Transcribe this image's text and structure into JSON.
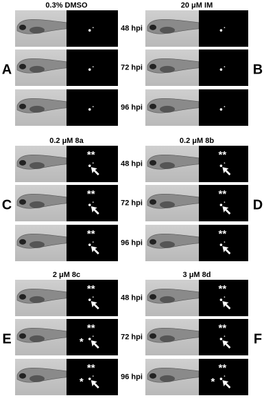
{
  "groups": [
    {
      "panels": [
        {
          "title": "0.3% DMSO",
          "letter": "A",
          "rows": [
            {
              "marks": []
            },
            {
              "marks": []
            },
            {
              "marks": []
            }
          ]
        },
        {
          "title": "20 μM IM",
          "letter": "B",
          "rows": [
            {
              "marks": []
            },
            {
              "marks": []
            },
            {
              "marks": []
            }
          ]
        }
      ],
      "times": [
        "48 hpi",
        "72 hpi",
        "96 hpi"
      ]
    },
    {
      "panels": [
        {
          "title": "0.2 μM 8a",
          "letter": "C",
          "rows": [
            {
              "marks": [
                "**"
              ]
            },
            {
              "marks": [
                "**"
              ]
            },
            {
              "marks": [
                "**"
              ]
            }
          ]
        },
        {
          "title": "0.2 μM 8b",
          "letter": "D",
          "rows": [
            {
              "marks": [
                "**"
              ]
            },
            {
              "marks": [
                "**"
              ]
            },
            {
              "marks": [
                "**"
              ]
            }
          ]
        }
      ],
      "times": [
        "48 hpi",
        "72 hpi",
        "96 hpi"
      ]
    },
    {
      "panels": [
        {
          "title": "2 μM 8c",
          "letter": "E",
          "rows": [
            {
              "marks": [
                "**"
              ]
            },
            {
              "marks": [
                "**",
                "*"
              ]
            },
            {
              "marks": [
                "**",
                "*"
              ]
            }
          ]
        },
        {
          "title": "3 μM 8d",
          "letter": "F",
          "rows": [
            {
              "marks": [
                "**"
              ]
            },
            {
              "marks": [
                "**"
              ]
            },
            {
              "marks": [
                "**",
                "*"
              ]
            }
          ]
        }
      ],
      "times": [
        "48 hpi",
        "72 hpi",
        "96 hpi"
      ]
    }
  ]
}
